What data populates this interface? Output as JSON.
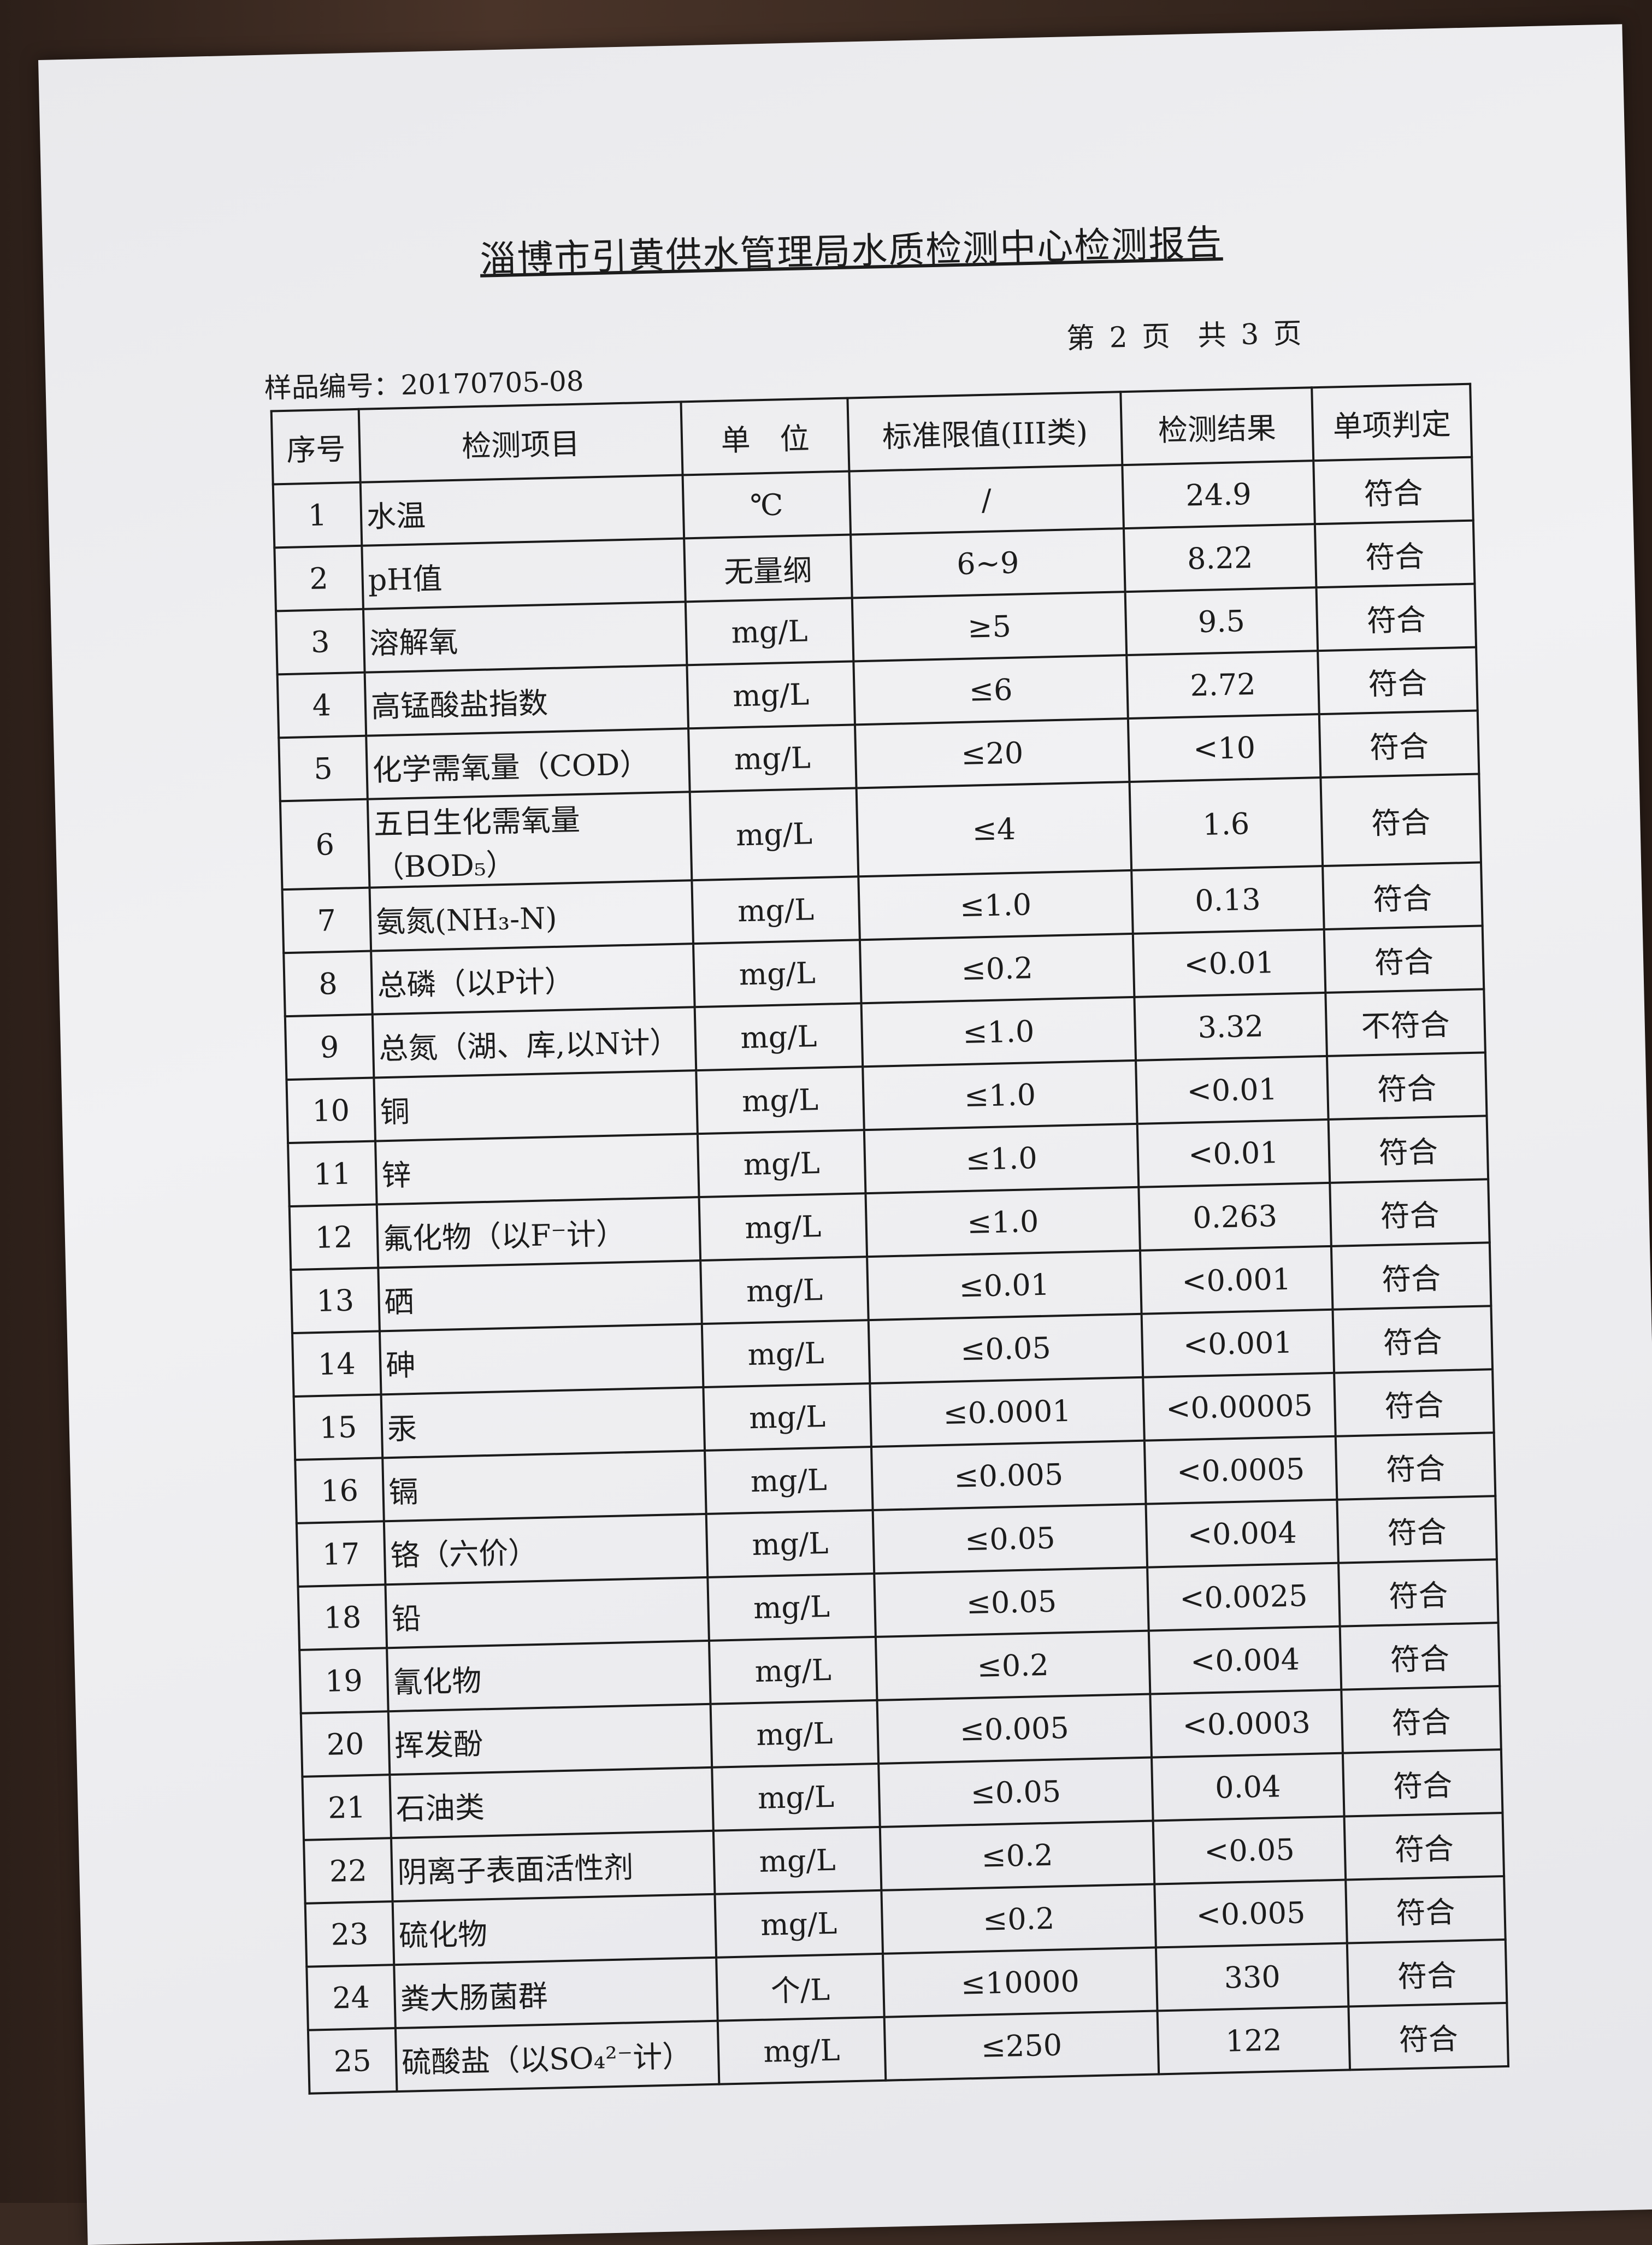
{
  "document": {
    "title": "淄博市引黄供水管理局水质检测中心检测报告",
    "sample_label": "样品编号：20170705-08",
    "page_current": "第 2 页",
    "page_total": "共 3 页"
  },
  "table": {
    "headers": [
      "序号",
      "检测项目",
      "单　位",
      "标准限值(III类)",
      "检测结果",
      "单项判定"
    ],
    "rows": [
      [
        "1",
        "水温",
        "℃",
        "/",
        "24.9",
        "符合"
      ],
      [
        "2",
        "pH值",
        "无量纲",
        "6~9",
        "8.22",
        "符合"
      ],
      [
        "3",
        "溶解氧",
        "mg/L",
        "≥5",
        "9.5",
        "符合"
      ],
      [
        "4",
        "高锰酸盐指数",
        "mg/L",
        "≤6",
        "2.72",
        "符合"
      ],
      [
        "5",
        "化学需氧量（COD）",
        "mg/L",
        "≤20",
        "<10",
        "符合"
      ],
      [
        "6",
        "五日生化需氧量（BOD₅）",
        "mg/L",
        "≤4",
        "1.6",
        "符合"
      ],
      [
        "7",
        "氨氮(NH₃-N)",
        "mg/L",
        "≤1.0",
        "0.13",
        "符合"
      ],
      [
        "8",
        "总磷（以P计）",
        "mg/L",
        "≤0.2",
        "<0.01",
        "符合"
      ],
      [
        "9",
        "总氮（湖、库,以N计）",
        "mg/L",
        "≤1.0",
        "3.32",
        "不符合"
      ],
      [
        "10",
        "铜",
        "mg/L",
        "≤1.0",
        "<0.01",
        "符合"
      ],
      [
        "11",
        "锌",
        "mg/L",
        "≤1.0",
        "<0.01",
        "符合"
      ],
      [
        "12",
        "氟化物（以F⁻计）",
        "mg/L",
        "≤1.0",
        "0.263",
        "符合"
      ],
      [
        "13",
        "硒",
        "mg/L",
        "≤0.01",
        "<0.001",
        "符合"
      ],
      [
        "14",
        "砷",
        "mg/L",
        "≤0.05",
        "<0.001",
        "符合"
      ],
      [
        "15",
        "汞",
        "mg/L",
        "≤0.0001",
        "<0.00005",
        "符合"
      ],
      [
        "16",
        "镉",
        "mg/L",
        "≤0.005",
        "<0.0005",
        "符合"
      ],
      [
        "17",
        "铬（六价）",
        "mg/L",
        "≤0.05",
        "<0.004",
        "符合"
      ],
      [
        "18",
        "铅",
        "mg/L",
        "≤0.05",
        "<0.0025",
        "符合"
      ],
      [
        "19",
        "氰化物",
        "mg/L",
        "≤0.2",
        "<0.004",
        "符合"
      ],
      [
        "20",
        "挥发酚",
        "mg/L",
        "≤0.005",
        "<0.0003",
        "符合"
      ],
      [
        "21",
        "石油类",
        "mg/L",
        "≤0.05",
        "0.04",
        "符合"
      ],
      [
        "22",
        "阴离子表面活性剂",
        "mg/L",
        "≤0.2",
        "<0.05",
        "符合"
      ],
      [
        "23",
        "硫化物",
        "mg/L",
        "≤0.2",
        "<0.005",
        "符合"
      ],
      [
        "24",
        "粪大肠菌群",
        "个/L",
        "≤10000",
        "330",
        "符合"
      ],
      [
        "25",
        "硫酸盐（以SO₄²⁻计）",
        "mg/L",
        "≤250",
        "122",
        "符合"
      ]
    ]
  }
}
